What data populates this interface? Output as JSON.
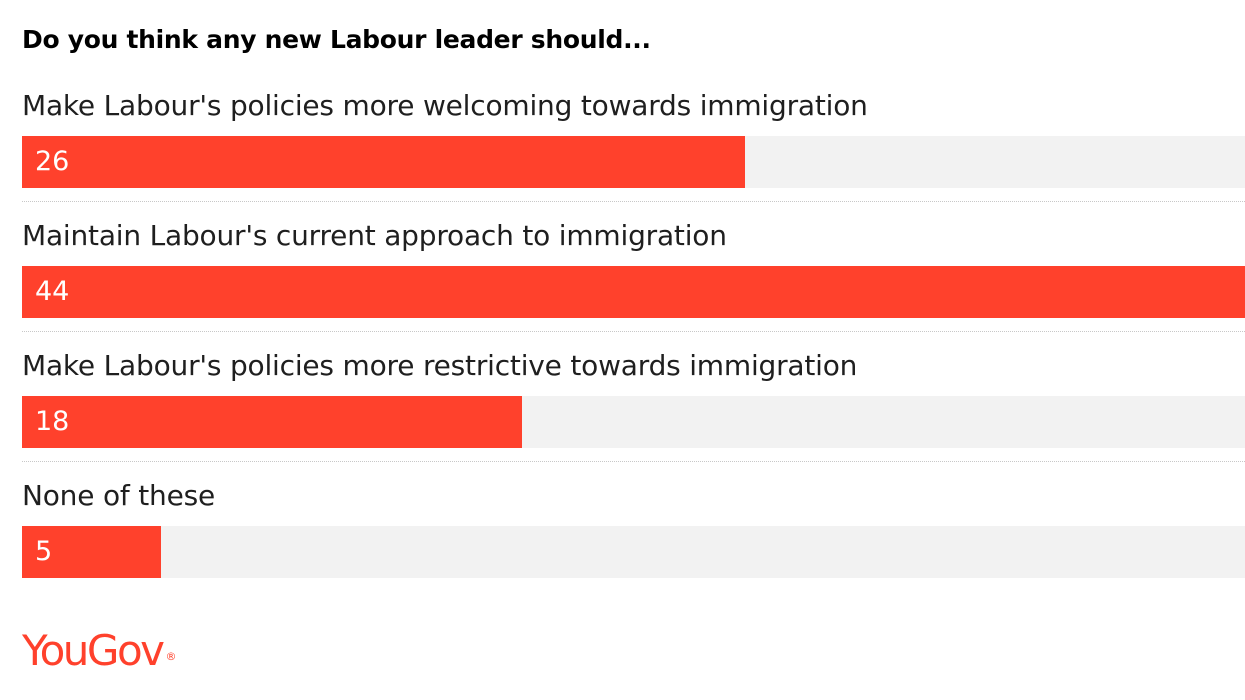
{
  "chart_data": {
    "type": "bar",
    "orientation": "horizontal",
    "title": "Do you think any new Labour leader should...",
    "categories": [
      "Make Labour's policies more welcoming towards immigration",
      "Maintain Labour's current approach to immigration",
      "Make Labour's policies more restrictive towards immigration",
      "None of these"
    ],
    "values": [
      26,
      44,
      18,
      5
    ],
    "xlim": [
      0,
      44
    ],
    "grid": false,
    "legend": "none",
    "bar_color": "#ff412c",
    "track_color": "#f2f2f2"
  },
  "branding": {
    "logo_text": "YouGov",
    "logo_color": "#ff412c"
  }
}
